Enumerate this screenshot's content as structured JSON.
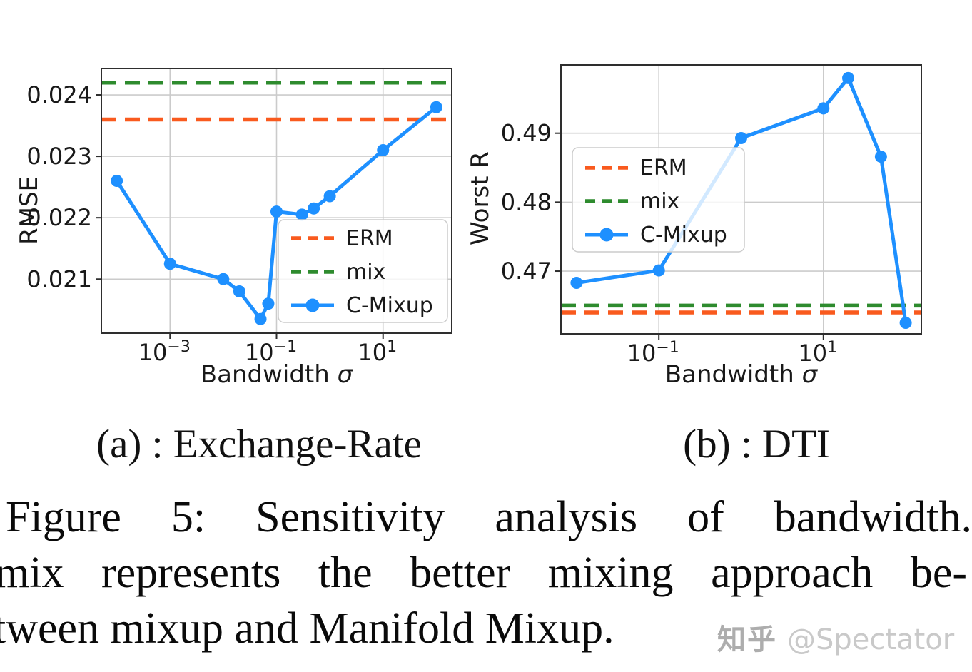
{
  "figure": {
    "subcaptions": [
      {
        "label": "(a) : Exchange-Rate"
      },
      {
        "label": "(b) : DTI"
      }
    ],
    "caption_lines": [
      "Figure 5:  Sensitivity analysis of bandwidth.",
      "mix represents the better mixing approach be-",
      "tween mixup and Manifold Mixup."
    ],
    "watermark": {
      "brand": "知乎",
      "handle": "@Spectator"
    }
  },
  "colors": {
    "erm": "#F95A1E",
    "mix": "#2E8B2E",
    "cmixup": "#1E90FF",
    "grid": "#CBCBCB",
    "spine": "#2E2E2E",
    "text": "#191919",
    "legend_border": "#CCCCCC"
  },
  "chart_data": [
    {
      "type": "line",
      "panel": "a",
      "title": "(a) : Exchange-Rate",
      "xlabel": "Bandwidth σ",
      "ylabel": "RMSE",
      "x_scale": "log",
      "grid": true,
      "xlim_log10": [
        -4.29,
        2.29
      ],
      "ylim": [
        0.02012,
        0.02443
      ],
      "x_ticks": [
        {
          "log10": -3,
          "base": "10",
          "exp": "−3"
        },
        {
          "log10": -1,
          "base": "10",
          "exp": "−1"
        },
        {
          "log10": 1,
          "base": "10",
          "exp": "1"
        }
      ],
      "y_ticks": [
        {
          "value": 0.021,
          "label": "0.021"
        },
        {
          "value": 0.022,
          "label": "0.022"
        },
        {
          "value": 0.023,
          "label": "0.023"
        },
        {
          "value": 0.024,
          "label": "0.024"
        }
      ],
      "hlines": [
        {
          "name": "ERM",
          "value": 0.0236,
          "color_key": "erm",
          "style": "dashed"
        },
        {
          "name": "mix",
          "value": 0.0242,
          "color_key": "mix",
          "style": "dashed"
        }
      ],
      "series": [
        {
          "name": "C-Mixup",
          "color_key": "cmixup",
          "marker": "circle",
          "x": [
            0.0001,
            0.001,
            0.01,
            0.02,
            0.05,
            0.07,
            0.1,
            0.3,
            0.5,
            1,
            10,
            100
          ],
          "y": [
            0.0226,
            0.02125,
            0.021,
            0.0208,
            0.02035,
            0.0206,
            0.0221,
            0.02205,
            0.02215,
            0.02235,
            0.0231,
            0.0238
          ]
        }
      ],
      "legend": {
        "entries": [
          "ERM",
          "mix",
          "C-Mixup"
        ],
        "location": "lower right"
      }
    },
    {
      "type": "line",
      "panel": "b",
      "title": "(b) : DTI",
      "xlabel": "Bandwidth σ",
      "ylabel": "Worst R",
      "x_scale": "log",
      "grid": true,
      "xlim_log10": [
        -2.19,
        2.19
      ],
      "ylim": [
        0.4609,
        0.4999
      ],
      "x_ticks": [
        {
          "log10": -1,
          "base": "10",
          "exp": "−1"
        },
        {
          "log10": 1,
          "base": "10",
          "exp": "1"
        }
      ],
      "y_ticks": [
        {
          "value": 0.47,
          "label": "0.47"
        },
        {
          "value": 0.48,
          "label": "0.48"
        },
        {
          "value": 0.49,
          "label": "0.49"
        }
      ],
      "hlines": [
        {
          "name": "ERM",
          "value": 0.464,
          "color_key": "erm",
          "style": "dashed"
        },
        {
          "name": "mix",
          "value": 0.465,
          "color_key": "mix",
          "style": "dashed"
        }
      ],
      "series": [
        {
          "name": "C-Mixup",
          "color_key": "cmixup",
          "marker": "circle",
          "x": [
            0.01,
            0.1,
            1,
            10,
            20,
            50,
            100
          ],
          "y": [
            0.4683,
            0.4701,
            0.4893,
            0.4936,
            0.498,
            0.4866,
            0.4625
          ]
        }
      ],
      "legend": {
        "entries": [
          "ERM",
          "mix",
          "C-Mixup"
        ],
        "location": "center left"
      }
    }
  ]
}
